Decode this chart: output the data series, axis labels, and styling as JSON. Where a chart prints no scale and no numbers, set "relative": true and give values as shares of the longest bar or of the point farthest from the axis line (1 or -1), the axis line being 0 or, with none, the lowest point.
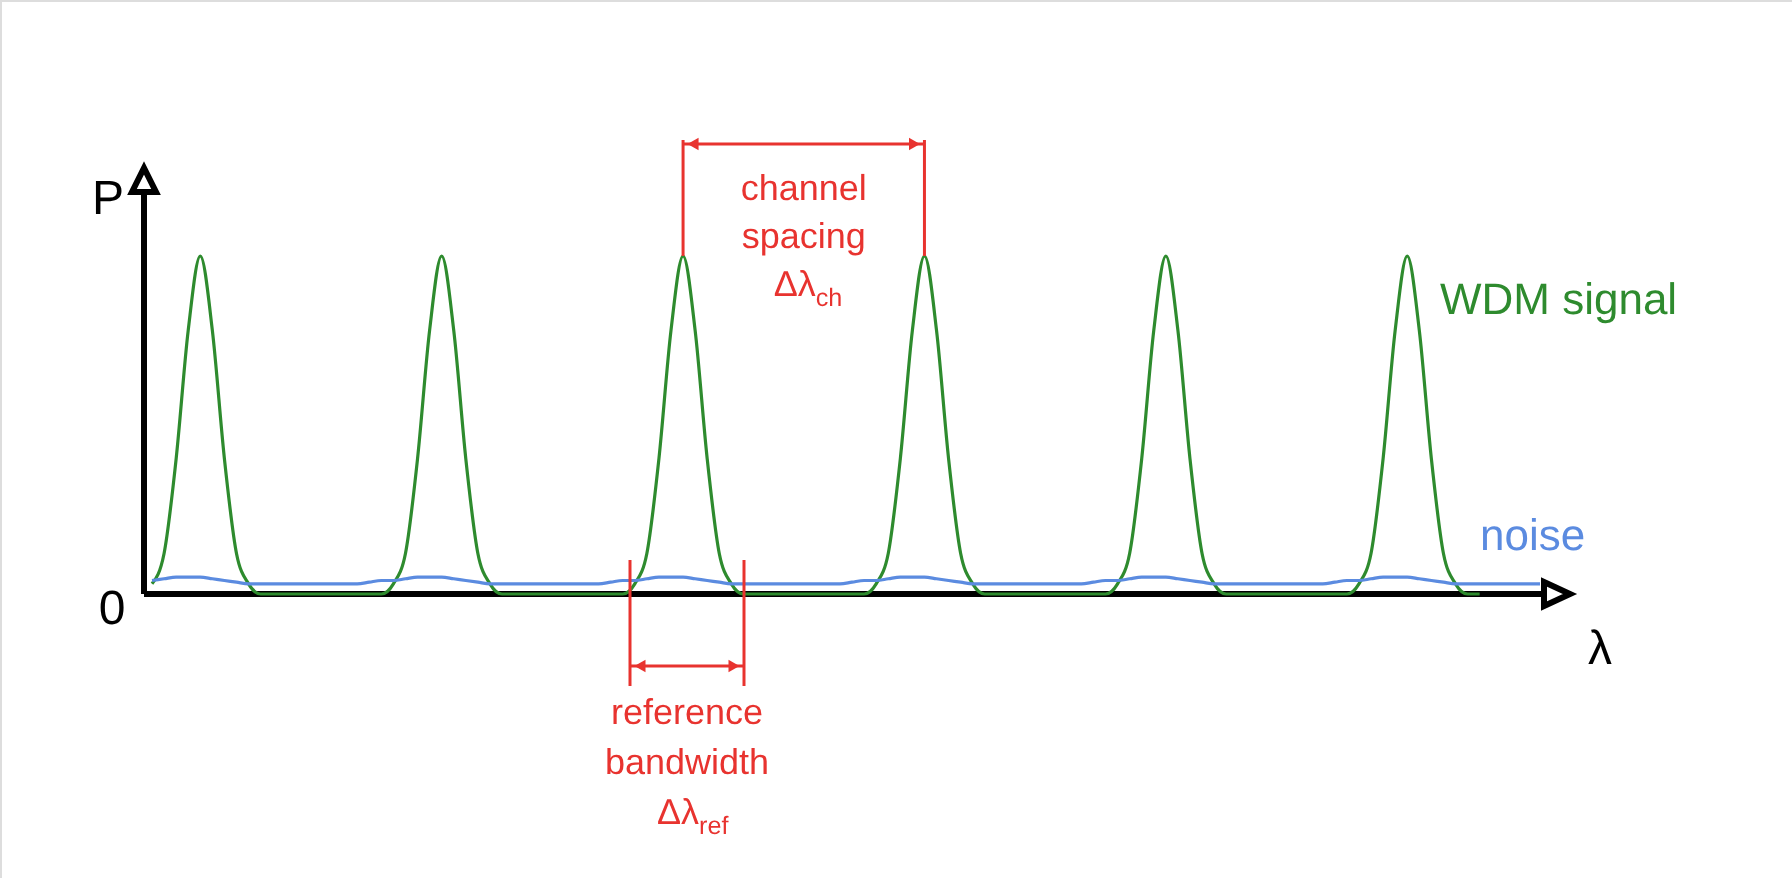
{
  "chart_data": {
    "type": "line",
    "relative": true,
    "xlabel": "λ",
    "ylabel": "P",
    "categories": [
      null,
      null,
      null,
      null,
      null,
      null,
      null,
      null,
      null,
      null,
      null,
      null,
      null,
      null,
      null,
      null,
      null,
      null,
      null,
      null,
      null,
      null,
      null,
      null,
      null,
      null,
      null,
      null,
      null,
      null,
      null,
      null,
      null,
      null,
      null,
      null,
      null,
      null,
      null,
      null,
      null,
      null,
      null,
      null,
      null,
      null,
      null,
      null,
      null,
      null,
      null,
      null,
      null,
      null,
      null,
      null,
      null,
      null,
      null,
      null,
      null,
      null,
      null,
      null,
      null,
      null,
      null,
      null,
      null,
      null,
      null,
      null,
      null,
      null,
      null,
      null,
      null,
      null,
      null,
      null,
      null,
      null,
      null,
      null,
      null,
      null,
      null,
      null,
      null,
      null,
      null,
      null,
      null,
      null,
      null,
      null,
      null,
      null,
      null,
      null,
      null,
      null,
      null,
      null,
      null,
      null,
      null,
      null,
      null,
      null,
      null,
      null,
      null,
      null,
      null,
      null
    ],
    "series": [
      {
        "name": "WDM signal",
        "color": "#2e8b2e",
        "values": [
          0.03,
          0.12,
          0.4,
          0.78,
          1,
          0.78,
          0.4,
          0.12,
          0.03,
          0,
          0,
          0,
          0,
          0,
          0,
          0,
          0,
          0,
          0,
          0,
          0.03,
          0.12,
          0.4,
          0.78,
          1,
          0.78,
          0.4,
          0.12,
          0.03,
          0,
          0,
          0,
          0,
          0,
          0,
          0,
          0,
          0,
          0,
          0,
          0.03,
          0.12,
          0.4,
          0.78,
          1,
          0.78,
          0.4,
          0.12,
          0.03,
          0,
          0,
          0,
          0,
          0,
          0,
          0,
          0,
          0,
          0,
          0,
          0.03,
          0.12,
          0.4,
          0.78,
          1,
          0.78,
          0.4,
          0.12,
          0.03,
          0,
          0,
          0,
          0,
          0,
          0,
          0,
          0,
          0,
          0,
          0,
          0.03,
          0.12,
          0.4,
          0.78,
          1,
          0.78,
          0.4,
          0.12,
          0.03,
          0,
          0,
          0,
          0,
          0,
          0,
          0,
          0,
          0,
          0,
          0,
          0.03,
          0.12,
          0.4,
          0.78,
          1,
          0.78,
          0.4,
          0.12,
          0.03,
          0,
          0,
          null,
          null,
          null,
          null,
          null
        ]
      },
      {
        "name": "noise",
        "color": "#5b8be0",
        "values": [
          0.04,
          0.045,
          0.05,
          0.05,
          0.05,
          0.045,
          0.04,
          0.035,
          0.03,
          0.03,
          0.03,
          0.03,
          0.03,
          0.03,
          0.03,
          0.03,
          0.03,
          0.03,
          0.035,
          0.04,
          0.04,
          0.045,
          0.05,
          0.05,
          0.05,
          0.045,
          0.04,
          0.035,
          0.03,
          0.03,
          0.03,
          0.03,
          0.03,
          0.03,
          0.03,
          0.03,
          0.03,
          0.03,
          0.035,
          0.04,
          0.04,
          0.045,
          0.05,
          0.05,
          0.05,
          0.045,
          0.04,
          0.035,
          0.03,
          0.03,
          0.03,
          0.03,
          0.03,
          0.03,
          0.03,
          0.03,
          0.03,
          0.03,
          0.035,
          0.04,
          0.04,
          0.045,
          0.05,
          0.05,
          0.05,
          0.045,
          0.04,
          0.035,
          0.03,
          0.03,
          0.03,
          0.03,
          0.03,
          0.03,
          0.03,
          0.03,
          0.03,
          0.03,
          0.035,
          0.04,
          0.04,
          0.045,
          0.05,
          0.05,
          0.05,
          0.045,
          0.04,
          0.035,
          0.03,
          0.03,
          0.03,
          0.03,
          0.03,
          0.03,
          0.03,
          0.03,
          0.03,
          0.03,
          0.035,
          0.04,
          0.04,
          0.045,
          0.05,
          0.05,
          0.05,
          0.045,
          0.04,
          0.035,
          0.03,
          0.03,
          0.03,
          0.03,
          0.03,
          0.03,
          0.03,
          0.03
        ]
      }
    ],
    "annotations": [
      "0",
      "channel spacing Δλ$_{ch}$",
      "reference bandwidth Δλ$_{ref}$"
    ]
  }
}
